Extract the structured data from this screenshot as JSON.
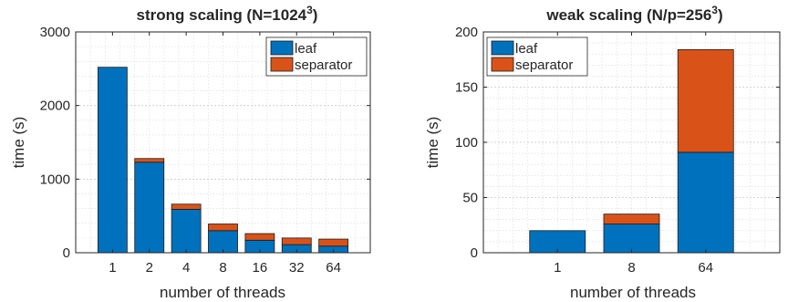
{
  "chart_data": [
    {
      "type": "bar",
      "stacked": true,
      "title": "strong scaling (N=1024",
      "title_superscript": "3",
      "title_suffix": ")",
      "xlabel": "number of threads",
      "ylabel": "time (s)",
      "categories": [
        "1",
        "2",
        "4",
        "8",
        "16",
        "32",
        "64"
      ],
      "ylim": [
        0,
        3000
      ],
      "yticks": [
        "0",
        "1000",
        "2000",
        "3000"
      ],
      "grid": true,
      "legend_position": "top-right",
      "series": [
        {
          "name": "leaf",
          "color": "#0072BD",
          "values": [
            2520,
            1230,
            590,
            300,
            170,
            110,
            90
          ]
        },
        {
          "name": "separator",
          "color": "#D95319",
          "values": [
            0,
            50,
            70,
            90,
            90,
            90,
            95
          ]
        }
      ]
    },
    {
      "type": "bar",
      "stacked": true,
      "title": "weak scaling (N/p=256",
      "title_superscript": "3",
      "title_suffix": ")",
      "xlabel": "number of threads",
      "ylabel": "time (s)",
      "categories": [
        "1",
        "8",
        "64"
      ],
      "ylim": [
        0,
        200
      ],
      "yticks": [
        "0",
        "50",
        "100",
        "150",
        "200"
      ],
      "grid": true,
      "legend_position": "top-left",
      "series": [
        {
          "name": "leaf",
          "color": "#0072BD",
          "values": [
            20,
            26,
            91
          ]
        },
        {
          "name": "separator",
          "color": "#D95319",
          "values": [
            0,
            9,
            93
          ]
        }
      ]
    }
  ]
}
